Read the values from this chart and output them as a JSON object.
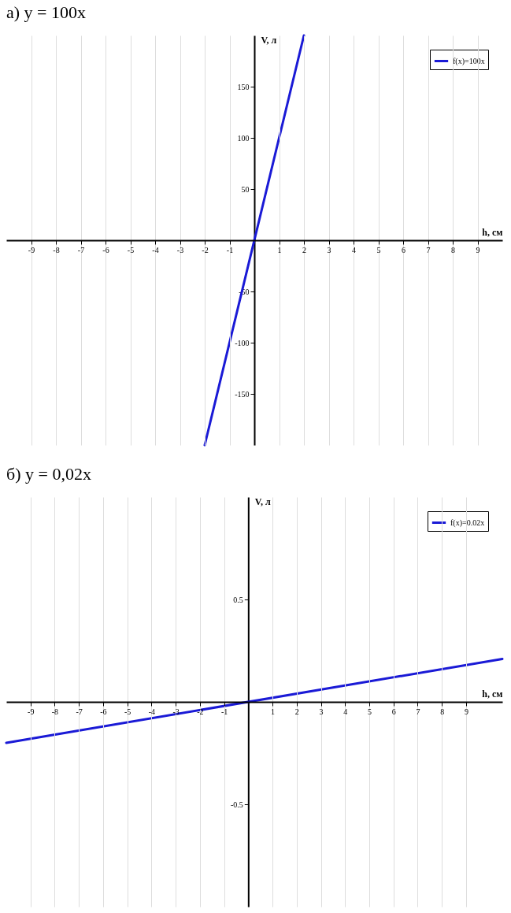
{
  "chart_data": [
    {
      "type": "line",
      "title": "а) y = 100x",
      "xlabel": "h, см",
      "ylabel": "V, л",
      "series": [
        {
          "name": "f(x)=100x",
          "color": "#1a1ad6",
          "x": [
            -2,
            2
          ],
          "values": [
            -200,
            200
          ]
        }
      ],
      "xlim": [
        -10,
        10
      ],
      "ylim": [
        -200,
        200
      ],
      "xticks": [
        -9,
        -8,
        -7,
        -6,
        -5,
        -4,
        -3,
        -2,
        -1,
        1,
        2,
        3,
        4,
        5,
        6,
        7,
        8,
        9
      ],
      "yticks": [
        -150,
        -100,
        -50,
        50,
        100,
        150
      ],
      "grid": "x",
      "legend": "top right",
      "marker": "none",
      "line_style": "solid"
    },
    {
      "type": "line",
      "title": "б) y = 0,02x",
      "xlabel": "h, см",
      "ylabel": "V, л",
      "series": [
        {
          "name": "f(x)=0.02x",
          "color": "#1a1ad6",
          "x": [
            -10,
            10.5
          ],
          "values": [
            -0.2,
            0.21
          ]
        }
      ],
      "xlim": [
        -10,
        10.5
      ],
      "ylim": [
        -1,
        1
      ],
      "xticks": [
        -9,
        -8,
        -7,
        -6,
        -5,
        -4,
        -3,
        -2,
        -1,
        1,
        2,
        3,
        4,
        5,
        6,
        7,
        8,
        9
      ],
      "yticks": [
        -0.5,
        0.5
      ],
      "grid": "x",
      "legend": "top right",
      "marker": "none",
      "line_style": "solid"
    }
  ]
}
